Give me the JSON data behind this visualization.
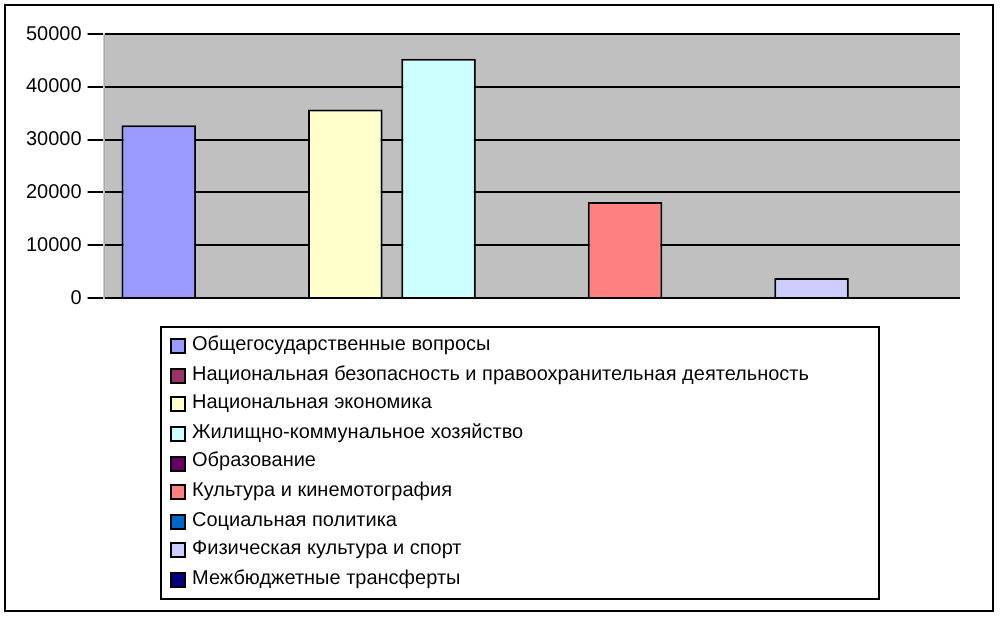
{
  "chart_data": {
    "type": "bar",
    "categories": [
      null
    ],
    "series": [
      {
        "name": "Общегосударственные вопросы",
        "color": "#9999ff",
        "values": [
          32700
        ]
      },
      {
        "name": "Национальная безопасность и правоохранительная деятельность",
        "color": "#993366",
        "values": [
          null
        ]
      },
      {
        "name": "Национальная экономика",
        "color": "#ffffcc",
        "values": [
          35700
        ]
      },
      {
        "name": "Жилищно-коммунальное хозяйство",
        "color": "#ccffff",
        "values": [
          45300
        ]
      },
      {
        "name": "Образование",
        "color": "#660066",
        "values": [
          null
        ]
      },
      {
        "name": "Культура и кинемотография",
        "color": "#ff8080",
        "values": [
          18200
        ]
      },
      {
        "name": "Социальная политика",
        "color": "#0066cc",
        "values": [
          null
        ]
      },
      {
        "name": "Физическая культура и спорт",
        "color": "#ccccff",
        "values": [
          3800
        ]
      },
      {
        "name": "Межбюджетные трансферты",
        "color": "#000080",
        "values": [
          null
        ]
      }
    ],
    "ylim": [
      0,
      50000
    ],
    "yticks": [
      0,
      10000,
      20000,
      30000,
      40000,
      50000
    ],
    "grid": "y",
    "legend": "bottom"
  }
}
